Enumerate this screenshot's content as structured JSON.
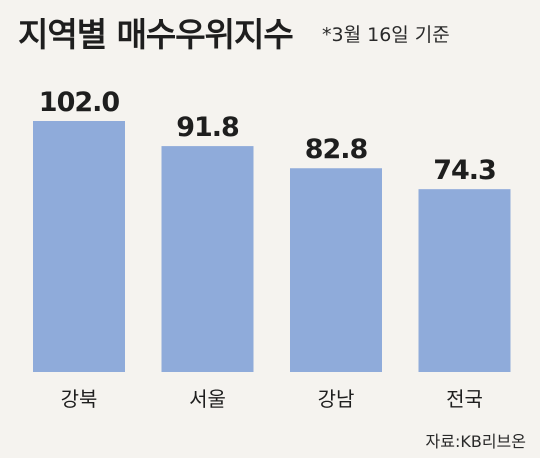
{
  "header": {
    "title": "지역별 매수우위지수",
    "note": "*3월 16일 기준"
  },
  "footer": {
    "source": "자료:KB리브온"
  },
  "chart_data": {
    "type": "bar",
    "categories": [
      "강북",
      "서울",
      "강남",
      "전국"
    ],
    "values": [
      102.0,
      91.8,
      82.8,
      74.3
    ],
    "value_labels": [
      "102.0",
      "91.8",
      "82.8",
      "74.3"
    ],
    "title": "지역별 매수우위지수",
    "subtitle": "*3월 16일 기준",
    "xlabel": "",
    "ylabel": "",
    "ylim": [
      0,
      102
    ],
    "grid": false,
    "legend": "none",
    "bar_color": "#8fabda"
  }
}
